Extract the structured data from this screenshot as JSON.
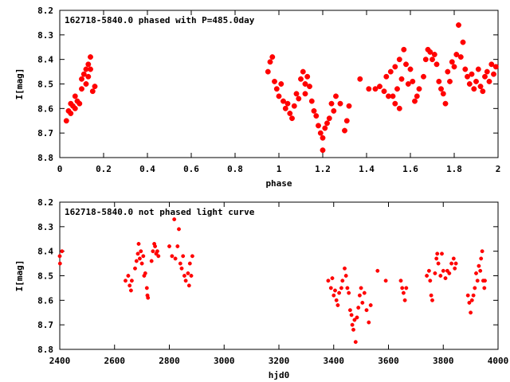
{
  "chart_data": [
    {
      "type": "scatter",
      "title": "162718-5840.0 phased with P=485.0day",
      "xlabel": "phase",
      "ylabel": "I[mag]",
      "xlim": [
        0,
        2
      ],
      "ylim": [
        8.2,
        8.8
      ],
      "y_inverted": true,
      "x_ticks": [
        "0",
        "0.2",
        "0.4",
        "0.6",
        "0.8",
        "1",
        "1.2",
        "1.4",
        "1.6",
        "1.8",
        "2"
      ],
      "y_ticks": [
        "8.2",
        "8.3",
        "8.4",
        "8.5",
        "8.6",
        "8.7",
        "8.8"
      ],
      "marker": "filled-circle",
      "color": "#ff0000",
      "grid": false,
      "points": [
        [
          0.03,
          8.65
        ],
        [
          0.04,
          8.61
        ],
        [
          0.05,
          8.58
        ],
        [
          0.05,
          8.62
        ],
        [
          0.06,
          8.59
        ],
        [
          0.07,
          8.55
        ],
        [
          0.07,
          8.6
        ],
        [
          0.08,
          8.57
        ],
        [
          0.09,
          8.58
        ],
        [
          0.1,
          8.52
        ],
        [
          0.1,
          8.48
        ],
        [
          0.11,
          8.46
        ],
        [
          0.12,
          8.5
        ],
        [
          0.12,
          8.44
        ],
        [
          0.13,
          8.47
        ],
        [
          0.13,
          8.42
        ],
        [
          0.14,
          8.39
        ],
        [
          0.14,
          8.44
        ],
        [
          0.15,
          8.53
        ],
        [
          0.16,
          8.51
        ],
        [
          0.95,
          8.45
        ],
        [
          0.96,
          8.41
        ],
        [
          0.97,
          8.39
        ],
        [
          0.98,
          8.49
        ],
        [
          0.99,
          8.52
        ],
        [
          1.0,
          8.55
        ],
        [
          1.01,
          8.5
        ],
        [
          1.02,
          8.57
        ],
        [
          1.03,
          8.6
        ],
        [
          1.04,
          8.58
        ],
        [
          1.05,
          8.62
        ],
        [
          1.06,
          8.64
        ],
        [
          1.07,
          8.59
        ],
        [
          1.08,
          8.54
        ],
        [
          1.09,
          8.56
        ],
        [
          1.1,
          8.48
        ],
        [
          1.11,
          8.45
        ],
        [
          1.12,
          8.5
        ],
        [
          1.12,
          8.54
        ],
        [
          1.13,
          8.47
        ],
        [
          1.14,
          8.51
        ],
        [
          1.15,
          8.57
        ],
        [
          1.16,
          8.61
        ],
        [
          1.17,
          8.63
        ],
        [
          1.18,
          8.67
        ],
        [
          1.19,
          8.7
        ],
        [
          1.2,
          8.72
        ],
        [
          1.2,
          8.77
        ],
        [
          1.21,
          8.68
        ],
        [
          1.22,
          8.66
        ],
        [
          1.23,
          8.64
        ],
        [
          1.24,
          8.58
        ],
        [
          1.25,
          8.61
        ],
        [
          1.26,
          8.55
        ],
        [
          1.28,
          8.58
        ],
        [
          1.3,
          8.69
        ],
        [
          1.31,
          8.65
        ],
        [
          1.32,
          8.59
        ],
        [
          1.37,
          8.48
        ],
        [
          1.41,
          8.52
        ],
        [
          1.44,
          8.52
        ],
        [
          1.46,
          8.51
        ],
        [
          1.48,
          8.53
        ],
        [
          1.49,
          8.47
        ],
        [
          1.5,
          8.55
        ],
        [
          1.51,
          8.45
        ],
        [
          1.52,
          8.55
        ],
        [
          1.53,
          8.58
        ],
        [
          1.53,
          8.43
        ],
        [
          1.54,
          8.52
        ],
        [
          1.55,
          8.6
        ],
        [
          1.55,
          8.4
        ],
        [
          1.56,
          8.48
        ],
        [
          1.57,
          8.36
        ],
        [
          1.58,
          8.42
        ],
        [
          1.59,
          8.5
        ],
        [
          1.6,
          8.44
        ],
        [
          1.61,
          8.49
        ],
        [
          1.62,
          8.57
        ],
        [
          1.63,
          8.55
        ],
        [
          1.64,
          8.52
        ],
        [
          1.66,
          8.47
        ],
        [
          1.67,
          8.4
        ],
        [
          1.68,
          8.36
        ],
        [
          1.69,
          8.37
        ],
        [
          1.7,
          8.4
        ],
        [
          1.71,
          8.38
        ],
        [
          1.72,
          8.42
        ],
        [
          1.73,
          8.49
        ],
        [
          1.74,
          8.52
        ],
        [
          1.75,
          8.54
        ],
        [
          1.76,
          8.58
        ],
        [
          1.77,
          8.45
        ],
        [
          1.78,
          8.49
        ],
        [
          1.79,
          8.41
        ],
        [
          1.8,
          8.43
        ],
        [
          1.81,
          8.38
        ],
        [
          1.82,
          8.26
        ],
        [
          1.83,
          8.39
        ],
        [
          1.84,
          8.33
        ],
        [
          1.85,
          8.44
        ],
        [
          1.86,
          8.47
        ],
        [
          1.87,
          8.5
        ],
        [
          1.88,
          8.46
        ],
        [
          1.89,
          8.52
        ],
        [
          1.9,
          8.49
        ],
        [
          1.91,
          8.44
        ],
        [
          1.92,
          8.51
        ],
        [
          1.93,
          8.53
        ],
        [
          1.94,
          8.47
        ],
        [
          1.95,
          8.45
        ],
        [
          1.96,
          8.49
        ],
        [
          1.97,
          8.42
        ],
        [
          1.98,
          8.46
        ],
        [
          1.99,
          8.43
        ]
      ]
    },
    {
      "type": "scatter",
      "title": "162718-5840.0 not phased light curve",
      "xlabel": "hjd0",
      "ylabel": "I[mag]",
      "xlim": [
        2400,
        4000
      ],
      "ylim": [
        8.2,
        8.8
      ],
      "y_inverted": true,
      "x_ticks": [
        "2400",
        "2600",
        "2800",
        "3000",
        "3200",
        "3400",
        "3600",
        "3800",
        "4000"
      ],
      "y_ticks": [
        "8.2",
        "8.3",
        "8.4",
        "8.5",
        "8.6",
        "8.7",
        "8.8"
      ],
      "marker": "filled-circle",
      "color": "#ff0000",
      "grid": false,
      "points": [
        [
          2400,
          8.42
        ],
        [
          2401,
          8.45
        ],
        [
          2408,
          8.4
        ],
        [
          2640,
          8.52
        ],
        [
          2650,
          8.5
        ],
        [
          2655,
          8.54
        ],
        [
          2660,
          8.56
        ],
        [
          2663,
          8.52
        ],
        [
          2675,
          8.47
        ],
        [
          2680,
          8.44
        ],
        [
          2685,
          8.41
        ],
        [
          2688,
          8.37
        ],
        [
          2692,
          8.43
        ],
        [
          2696,
          8.4
        ],
        [
          2700,
          8.45
        ],
        [
          2705,
          8.42
        ],
        [
          2708,
          8.5
        ],
        [
          2712,
          8.49
        ],
        [
          2718,
          8.55
        ],
        [
          2720,
          8.58
        ],
        [
          2722,
          8.59
        ],
        [
          2735,
          8.44
        ],
        [
          2740,
          8.4
        ],
        [
          2745,
          8.37
        ],
        [
          2748,
          8.38
        ],
        [
          2752,
          8.41
        ],
        [
          2756,
          8.4
        ],
        [
          2760,
          8.42
        ],
        [
          2800,
          8.38
        ],
        [
          2810,
          8.42
        ],
        [
          2818,
          8.27
        ],
        [
          2822,
          8.43
        ],
        [
          2830,
          8.38
        ],
        [
          2835,
          8.31
        ],
        [
          2840,
          8.45
        ],
        [
          2845,
          8.47
        ],
        [
          2850,
          8.42
        ],
        [
          2855,
          8.5
        ],
        [
          2860,
          8.52
        ],
        [
          2868,
          8.49
        ],
        [
          2872,
          8.54
        ],
        [
          2875,
          8.45
        ],
        [
          2880,
          8.5
        ],
        [
          2884,
          8.42
        ],
        [
          3380,
          8.52
        ],
        [
          3390,
          8.55
        ],
        [
          3395,
          8.51
        ],
        [
          3400,
          8.58
        ],
        [
          3405,
          8.56
        ],
        [
          3410,
          8.6
        ],
        [
          3415,
          8.62
        ],
        [
          3420,
          8.57
        ],
        [
          3428,
          8.55
        ],
        [
          3432,
          8.52
        ],
        [
          3440,
          8.47
        ],
        [
          3445,
          8.5
        ],
        [
          3450,
          8.55
        ],
        [
          3455,
          8.57
        ],
        [
          3460,
          8.64
        ],
        [
          3465,
          8.66
        ],
        [
          3468,
          8.7
        ],
        [
          3472,
          8.72
        ],
        [
          3476,
          8.68
        ],
        [
          3480,
          8.77
        ],
        [
          3485,
          8.67
        ],
        [
          3490,
          8.63
        ],
        [
          3495,
          8.58
        ],
        [
          3500,
          8.55
        ],
        [
          3505,
          8.61
        ],
        [
          3512,
          8.57
        ],
        [
          3520,
          8.64
        ],
        [
          3528,
          8.69
        ],
        [
          3535,
          8.62
        ],
        [
          3560,
          8.48
        ],
        [
          3590,
          8.52
        ],
        [
          3645,
          8.52
        ],
        [
          3650,
          8.55
        ],
        [
          3655,
          8.57
        ],
        [
          3660,
          8.6
        ],
        [
          3665,
          8.55
        ],
        [
          3740,
          8.5
        ],
        [
          3748,
          8.48
        ],
        [
          3752,
          8.52
        ],
        [
          3756,
          8.58
        ],
        [
          3760,
          8.6
        ],
        [
          3770,
          8.49
        ],
        [
          3775,
          8.43
        ],
        [
          3778,
          8.41
        ],
        [
          3782,
          8.45
        ],
        [
          3790,
          8.5
        ],
        [
          3795,
          8.41
        ],
        [
          3800,
          8.48
        ],
        [
          3808,
          8.51
        ],
        [
          3815,
          8.48
        ],
        [
          3822,
          8.49
        ],
        [
          3830,
          8.45
        ],
        [
          3838,
          8.43
        ],
        [
          3842,
          8.47
        ],
        [
          3846,
          8.45
        ],
        [
          3890,
          8.58
        ],
        [
          3895,
          8.61
        ],
        [
          3900,
          8.65
        ],
        [
          3905,
          8.6
        ],
        [
          3910,
          8.58
        ],
        [
          3915,
          8.55
        ],
        [
          3920,
          8.49
        ],
        [
          3925,
          8.52
        ],
        [
          3930,
          8.46
        ],
        [
          3935,
          8.48
        ],
        [
          3938,
          8.43
        ],
        [
          3942,
          8.4
        ],
        [
          3946,
          8.52
        ],
        [
          3950,
          8.55
        ],
        [
          3952,
          8.52
        ]
      ]
    }
  ]
}
